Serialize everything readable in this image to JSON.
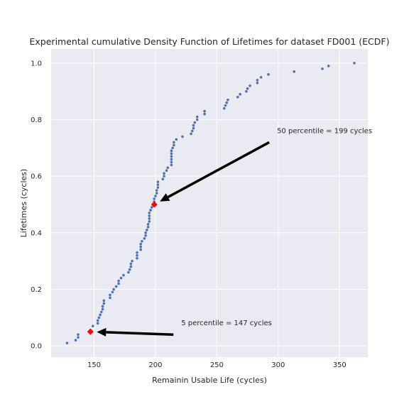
{
  "chart_data": {
    "type": "scatter",
    "title": "Experimental cumulative Density Function of Lifetimes for dataset FD001 (ECDF)",
    "xlabel": "Remainin Usable Life (cycles)",
    "ylabel": "Lifetimes (cycles)",
    "xlim": [
      115,
      373
    ],
    "ylim": [
      -0.04,
      1.05
    ],
    "xticks": [
      150,
      200,
      250,
      300,
      350
    ],
    "yticks": [
      0.0,
      0.2,
      0.4,
      0.6,
      0.8,
      1.0
    ],
    "grid": true,
    "series": [
      {
        "color": "#4c72b0",
        "marker": "dot",
        "points": [
          [
            128,
            0.01
          ],
          [
            135,
            0.02
          ],
          [
            137,
            0.03
          ],
          [
            137,
            0.04
          ],
          [
            147,
            0.05
          ],
          [
            149,
            0.07
          ],
          [
            153,
            0.08
          ],
          [
            153,
            0.09
          ],
          [
            154,
            0.1
          ],
          [
            155,
            0.11
          ],
          [
            156,
            0.12
          ],
          [
            157,
            0.13
          ],
          [
            157,
            0.14
          ],
          [
            158,
            0.15
          ],
          [
            158,
            0.16
          ],
          [
            163,
            0.17
          ],
          [
            163,
            0.18
          ],
          [
            165,
            0.19
          ],
          [
            166,
            0.2
          ],
          [
            168,
            0.21
          ],
          [
            170,
            0.22
          ],
          [
            170,
            0.23
          ],
          [
            172,
            0.24
          ],
          [
            174,
            0.25
          ],
          [
            178,
            0.26
          ],
          [
            179,
            0.27
          ],
          [
            180,
            0.28
          ],
          [
            180,
            0.29
          ],
          [
            181,
            0.3
          ],
          [
            185,
            0.31
          ],
          [
            185,
            0.32
          ],
          [
            185,
            0.33
          ],
          [
            188,
            0.34
          ],
          [
            188,
            0.35
          ],
          [
            188,
            0.36
          ],
          [
            189,
            0.37
          ],
          [
            191,
            0.38
          ],
          [
            192,
            0.39
          ],
          [
            192,
            0.4
          ],
          [
            193,
            0.41
          ],
          [
            194,
            0.42
          ],
          [
            194,
            0.43
          ],
          [
            195,
            0.44
          ],
          [
            195,
            0.45
          ],
          [
            195,
            0.46
          ],
          [
            195,
            0.47
          ],
          [
            196,
            0.48
          ],
          [
            197,
            0.49
          ],
          [
            199,
            0.5
          ],
          [
            199,
            0.51
          ],
          [
            199,
            0.52
          ],
          [
            200,
            0.53
          ],
          [
            201,
            0.54
          ],
          [
            201,
            0.55
          ],
          [
            202,
            0.56
          ],
          [
            202,
            0.57
          ],
          [
            202,
            0.58
          ],
          [
            206,
            0.59
          ],
          [
            207,
            0.6
          ],
          [
            207,
            0.61
          ],
          [
            209,
            0.62
          ],
          [
            210,
            0.63
          ],
          [
            213,
            0.64
          ],
          [
            213,
            0.65
          ],
          [
            213,
            0.66
          ],
          [
            213,
            0.67
          ],
          [
            213,
            0.68
          ],
          [
            213,
            0.69
          ],
          [
            214,
            0.7
          ],
          [
            215,
            0.71
          ],
          [
            215,
            0.72
          ],
          [
            217,
            0.73
          ],
          [
            222,
            0.74
          ],
          [
            229,
            0.75
          ],
          [
            230,
            0.76
          ],
          [
            231,
            0.77
          ],
          [
            231,
            0.78
          ],
          [
            232,
            0.79
          ],
          [
            234,
            0.8
          ],
          [
            234,
            0.81
          ],
          [
            240,
            0.82
          ],
          [
            240,
            0.83
          ],
          [
            256,
            0.84
          ],
          [
            257,
            0.85
          ],
          [
            258,
            0.86
          ],
          [
            259,
            0.87
          ],
          [
            267,
            0.88
          ],
          [
            269,
            0.89
          ],
          [
            274,
            0.9
          ],
          [
            275,
            0.91
          ],
          [
            277,
            0.92
          ],
          [
            283,
            0.93
          ],
          [
            283,
            0.94
          ],
          [
            286,
            0.95
          ],
          [
            292,
            0.96
          ],
          [
            313,
            0.97
          ],
          [
            336,
            0.98
          ],
          [
            341,
            0.99
          ],
          [
            362,
            1.0
          ]
        ]
      },
      {
        "color": "#ff0000",
        "marker": "diamond",
        "points": [
          [
            147,
            0.05
          ],
          [
            199,
            0.5
          ]
        ]
      }
    ],
    "annotations": [
      {
        "text": "50 percentile = 199 cycles",
        "text_xy": [
          299,
          0.75
        ],
        "arrow_to": [
          199,
          0.5
        ]
      },
      {
        "text": "5 percentile = 147 cycles",
        "text_xy": [
          221,
          0.07
        ],
        "arrow_to": [
          147,
          0.05
        ]
      }
    ]
  }
}
